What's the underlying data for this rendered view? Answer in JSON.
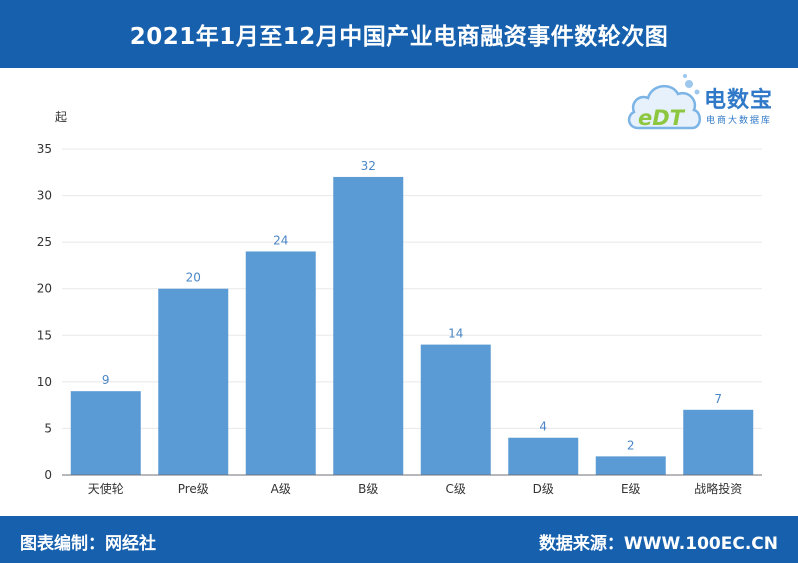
{
  "header": {
    "title": "2021年1月至12月中国产业电商融资事件数轮次图"
  },
  "footer": {
    "editor": "图表编制：网经社",
    "source": "数据来源：WWW.100EC.CN"
  },
  "logo": {
    "mark_text": "eDT",
    "brand": "电数宝",
    "sub": "电商大数据库",
    "icon": "cloud-logo-icon"
  },
  "colors": {
    "header": "#1660ad",
    "bar": "#5b9bd5",
    "label": "#4a86c5"
  },
  "chart_data": {
    "type": "bar",
    "categories": [
      "天使轮",
      "Pre级",
      "A级",
      "B级",
      "C级",
      "D级",
      "E级",
      "战略投资"
    ],
    "values": [
      9,
      20,
      24,
      32,
      14,
      4,
      2,
      7
    ],
    "ylabel": "起",
    "yticks": [
      0,
      5,
      10,
      15,
      20,
      25,
      30,
      35
    ],
    "ylim": [
      0,
      35
    ],
    "grid": true,
    "data_labels": true
  }
}
